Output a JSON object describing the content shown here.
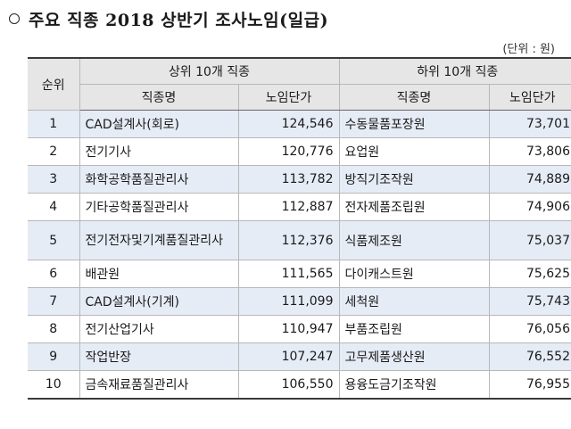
{
  "title": "주요 직종 2018 상반기 조사노임(일급)",
  "unit": "(단위 : 원)",
  "headers": {
    "rank": "순위",
    "top_group": "상위 10개 직종",
    "bottom_group": "하위 10개 직종",
    "job_name": "직종명",
    "wage": "노임단가"
  },
  "rows": [
    {
      "rank": "1",
      "top_job": "CAD설계사(회로)",
      "top_wage": "124,546",
      "bottom_job": "수동물품포장원",
      "bottom_wage": "73,701"
    },
    {
      "rank": "2",
      "top_job": "전기기사",
      "top_wage": "120,776",
      "bottom_job": "요업원",
      "bottom_wage": "73,806"
    },
    {
      "rank": "3",
      "top_job": "화학공학품질관리사",
      "top_wage": "113,782",
      "bottom_job": "방직기조작원",
      "bottom_wage": "74,889"
    },
    {
      "rank": "4",
      "top_job": "기타공학품질관리사",
      "top_wage": "112,887",
      "bottom_job": "전자제품조립원",
      "bottom_wage": "74,906"
    },
    {
      "rank": "5",
      "top_job": "전기전자및기계품질관리사",
      "top_wage": "112,376",
      "bottom_job": "식품제조원",
      "bottom_wage": "75,037"
    },
    {
      "rank": "6",
      "top_job": "배관원",
      "top_wage": "111,565",
      "bottom_job": "다이캐스트원",
      "bottom_wage": "75,625"
    },
    {
      "rank": "7",
      "top_job": "CAD설계사(기계)",
      "top_wage": "111,099",
      "bottom_job": "세척원",
      "bottom_wage": "75,743"
    },
    {
      "rank": "8",
      "top_job": "전기산업기사",
      "top_wage": "110,947",
      "bottom_job": "부품조립원",
      "bottom_wage": "76,056"
    },
    {
      "rank": "9",
      "top_job": "작업반장",
      "top_wage": "107,247",
      "bottom_job": "고무제품생산원",
      "bottom_wage": "76,552"
    },
    {
      "rank": "10",
      "top_job": "금속재료품질관리사",
      "top_wage": "106,550",
      "bottom_job": "용융도금기조작원",
      "bottom_wage": "76,955"
    }
  ]
}
